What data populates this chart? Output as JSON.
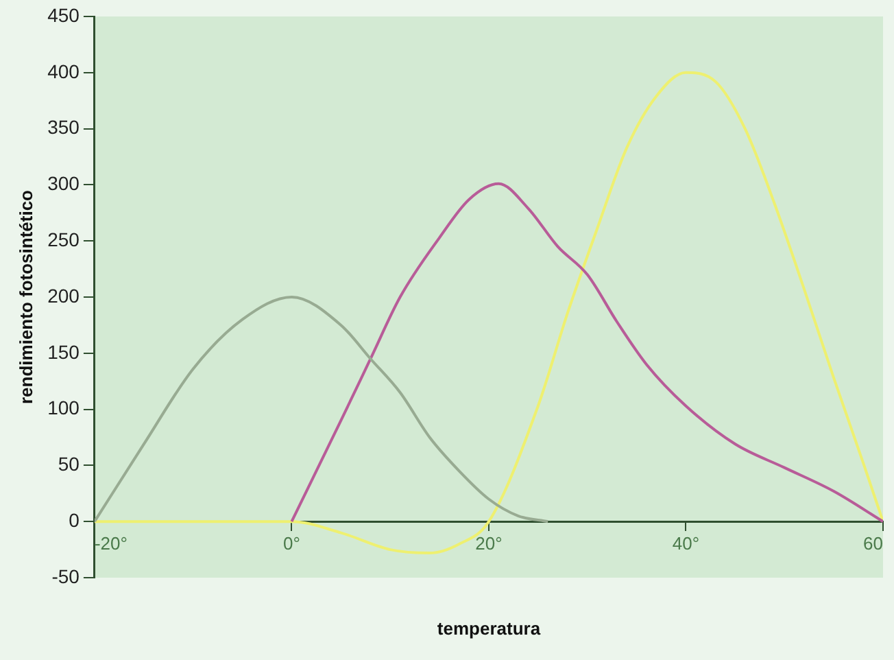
{
  "chart_data": {
    "type": "line",
    "xlabel": "temperatura",
    "ylabel": "rendimiento fotosintético",
    "xlim": [
      -20,
      60
    ],
    "xticks": [
      {
        "value": -20,
        "label": "-20°"
      },
      {
        "value": 0,
        "label": "0°"
      },
      {
        "value": 20,
        "label": "20°"
      },
      {
        "value": 40,
        "label": "40°"
      },
      {
        "value": 60,
        "label": "60"
      }
    ],
    "ylim": [
      -50,
      450
    ],
    "yticks": [
      -50,
      0,
      50,
      100,
      150,
      200,
      250,
      300,
      350,
      400,
      450
    ],
    "grid": false,
    "legend": false,
    "marker": "none",
    "line_style": "solid",
    "series": [
      {
        "color": "#98ab92",
        "x": [
          -20,
          -15,
          -10,
          -5,
          0,
          5,
          8,
          11,
          14,
          17,
          20,
          23,
          26
        ],
        "values": [
          0,
          69,
          136,
          180,
          200,
          175,
          145,
          115,
          75,
          45,
          20,
          5,
          0
        ]
      },
      {
        "color": "#b85c98",
        "x": [
          0,
          5,
          8,
          11,
          15,
          18,
          21,
          24,
          27,
          30,
          33,
          36,
          40,
          45,
          50,
          55,
          60
        ],
        "values": [
          0,
          90,
          145,
          200,
          253,
          287,
          301,
          279,
          245,
          220,
          178,
          140,
          103,
          69,
          48,
          27,
          0
        ]
      },
      {
        "color": "#eef070",
        "x": [
          -20,
          0,
          5,
          10,
          14,
          17,
          20,
          25,
          28,
          31,
          34,
          37,
          40,
          43,
          46,
          49,
          52,
          55,
          58,
          60
        ],
        "values": [
          0,
          0,
          -10,
          -25,
          -28,
          -20,
          0,
          103,
          186,
          261,
          333,
          379,
          400,
          392,
          350,
          283,
          207,
          128,
          52,
          0
        ]
      }
    ]
  }
}
